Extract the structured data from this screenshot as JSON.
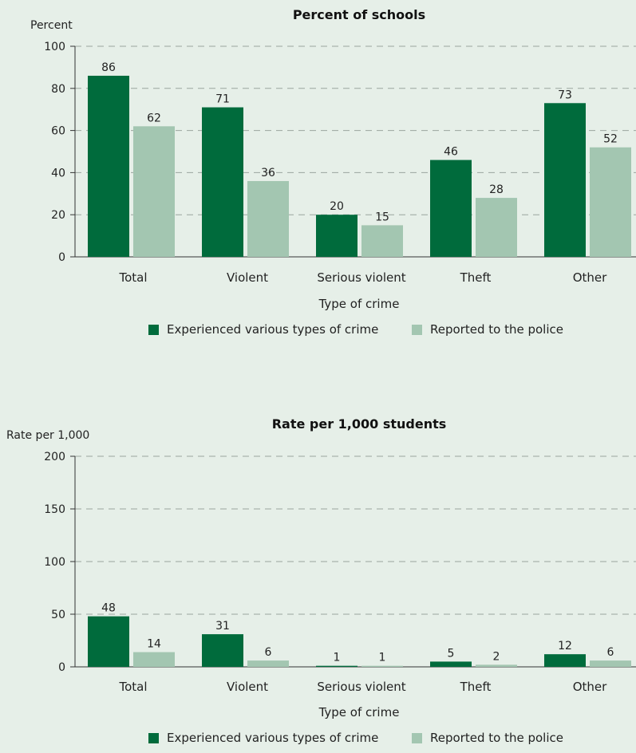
{
  "colors": {
    "experienced": "#006b3c",
    "reported": "#a3c6b1",
    "background": "#e6efe8"
  },
  "chart_data": [
    {
      "type": "bar",
      "title": "Percent of schools",
      "ylabel": "Percent",
      "xlabel": "Type of crime",
      "categories": [
        "Total",
        "Violent",
        "Serious violent",
        "Theft",
        "Other"
      ],
      "ylim": [
        0,
        100
      ],
      "yticks": [
        0,
        20,
        40,
        60,
        80,
        100
      ],
      "grid": true,
      "legend_position": "bottom",
      "series": [
        {
          "name": "Experienced various types of crime",
          "color": "#006b3c",
          "values": [
            86,
            71,
            20,
            46,
            73
          ]
        },
        {
          "name": "Reported to the police",
          "color": "#a3c6b1",
          "values": [
            62,
            36,
            15,
            28,
            52
          ]
        }
      ]
    },
    {
      "type": "bar",
      "title": "Rate per 1,000 students",
      "ylabel": "Rate per 1,000",
      "xlabel": "Type of crime",
      "categories": [
        "Total",
        "Violent",
        "Serious violent",
        "Theft",
        "Other"
      ],
      "ylim": [
        0,
        200
      ],
      "yticks": [
        0,
        50,
        100,
        150,
        200
      ],
      "grid": true,
      "legend_position": "bottom",
      "series": [
        {
          "name": "Experienced various types of crime",
          "color": "#006b3c",
          "values": [
            48,
            31,
            1,
            5,
            12
          ]
        },
        {
          "name": "Reported to the police",
          "color": "#a3c6b1",
          "values": [
            14,
            6,
            1,
            2,
            6
          ]
        }
      ]
    }
  ]
}
